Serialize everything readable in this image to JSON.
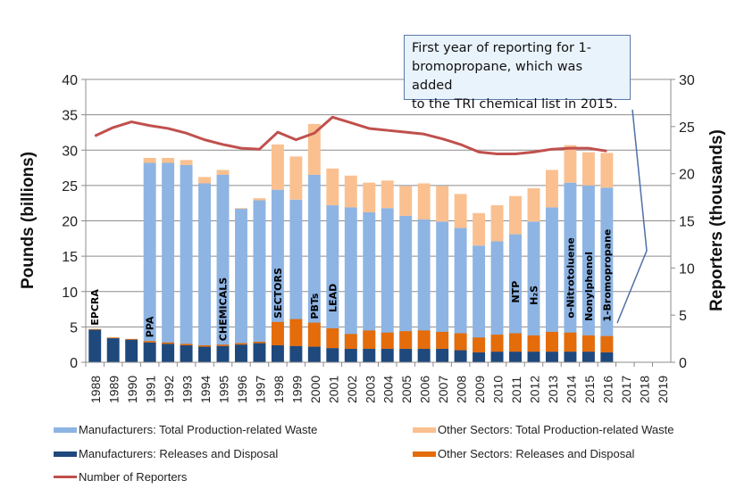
{
  "chart_data": {
    "type": "bar",
    "subtype": "stacked-bar-with-line",
    "title": "",
    "xlabel": "",
    "ylabel": "Pounds (billions)",
    "y2label": "Reporters (thousands)",
    "ylim": [
      0,
      40
    ],
    "y2lim": [
      0,
      30
    ],
    "yticks": [
      0,
      5,
      10,
      15,
      20,
      25,
      30,
      35,
      40
    ],
    "y2ticks": [
      0,
      5,
      10,
      15,
      20,
      25,
      30
    ],
    "grid": true,
    "legend_position": "bottom",
    "categories": [
      "1988",
      "1989",
      "1990",
      "1991",
      "1992",
      "1993",
      "1994",
      "1995",
      "1996",
      "1997",
      "1998",
      "1999",
      "2000",
      "2001",
      "2002",
      "2003",
      "2004",
      "2005",
      "2006",
      "2007",
      "2008",
      "2009",
      "2010",
      "2011",
      "2012",
      "2013",
      "2014",
      "2015",
      "2016",
      "2017",
      "2018",
      "2019"
    ],
    "series": [
      {
        "name": "Manufacturers: Total Production-related Waste",
        "color": "#8eb4e3",
        "kind": "bar",
        "values": [
          0.1,
          0.1,
          0.1,
          28.2,
          28.2,
          27.9,
          25.3,
          26.5,
          21.7,
          22.9,
          24.4,
          23.0,
          26.5,
          22.2,
          21.9,
          21.2,
          21.8,
          20.7,
          20.2,
          19.9,
          19.0,
          16.5,
          17.1,
          18.1,
          19.9,
          21.9,
          25.4,
          25.0,
          24.7,
          null,
          null,
          null
        ]
      },
      {
        "name": "Other Sectors: Total Production-related Waste",
        "color": "#fac090",
        "kind": "bar",
        "values": [
          0.0,
          0.0,
          0.0,
          0.7,
          0.7,
          0.7,
          0.9,
          0.7,
          0.1,
          0.3,
          6.4,
          6.1,
          7.2,
          5.2,
          4.5,
          4.2,
          3.9,
          4.2,
          5.1,
          5.0,
          4.8,
          4.6,
          5.1,
          5.4,
          4.7,
          5.3,
          5.3,
          4.7,
          4.9,
          null,
          null,
          null
        ]
      },
      {
        "name": "Manufacturers: Releases and Disposal",
        "color": "#1f497d",
        "kind": "bar",
        "values": [
          4.6,
          3.4,
          3.2,
          2.8,
          2.6,
          2.4,
          2.2,
          2.3,
          2.5,
          2.7,
          2.4,
          2.3,
          2.2,
          2.0,
          1.9,
          1.9,
          1.9,
          1.9,
          1.9,
          1.9,
          1.7,
          1.4,
          1.5,
          1.5,
          1.5,
          1.5,
          1.5,
          1.5,
          1.4,
          null,
          null,
          null
        ]
      },
      {
        "name": "Other Sectors: Releases and Disposal",
        "color": "#e46c0a",
        "kind": "bar",
        "values": [
          0.1,
          0.1,
          0.1,
          0.2,
          0.2,
          0.2,
          0.2,
          0.2,
          0.2,
          0.2,
          3.3,
          3.8,
          3.4,
          2.8,
          2.1,
          2.6,
          2.3,
          2.5,
          2.6,
          2.4,
          2.4,
          2.1,
          2.4,
          2.6,
          2.3,
          2.8,
          2.7,
          2.3,
          2.3,
          null,
          null,
          null
        ]
      },
      {
        "name": "Number of Reporters",
        "color": "#c0504d",
        "kind": "line",
        "axis": "right",
        "values": [
          24.0,
          24.9,
          25.5,
          25.1,
          24.8,
          24.3,
          23.6,
          23.1,
          22.7,
          22.6,
          24.4,
          23.6,
          24.3,
          26.0,
          25.4,
          24.8,
          24.6,
          24.4,
          24.2,
          23.7,
          23.1,
          22.3,
          22.1,
          22.1,
          22.3,
          22.6,
          22.7,
          22.7,
          22.4,
          null,
          null,
          null
        ]
      }
    ],
    "annotations": [
      {
        "year": "1988",
        "text": "EPCRA"
      },
      {
        "year": "1991",
        "text": "PPA"
      },
      {
        "year": "1995",
        "text": "CHEMICALS"
      },
      {
        "year": "1998",
        "text": "SECTORS"
      },
      {
        "year": "2000",
        "text": "PBTs"
      },
      {
        "year": "2001",
        "text": "LEAD"
      },
      {
        "year": "2011",
        "text": "NTP"
      },
      {
        "year": "2012",
        "text": "H₂S"
      },
      {
        "year": "2014",
        "text": "o-Nitrotoluene"
      },
      {
        "year": "2015",
        "text": "Nonylphenol"
      },
      {
        "year": "2016",
        "text": "1-Bromopropane"
      }
    ],
    "callout": {
      "text": "First year of reporting for 1-bromopropane, which was added to the TRI chemical list in 2015.",
      "points_to_year": "2016"
    }
  },
  "legend": {
    "items": [
      {
        "label": "Manufacturers: Total Production-related Waste",
        "color": "#8eb4e3"
      },
      {
        "label": "Other Sectors: Total Production-related Waste",
        "color": "#fac090"
      },
      {
        "label": "Manufacturers: Releases and Disposal",
        "color": "#1f497d"
      },
      {
        "label": "Other Sectors: Releases and Disposal",
        "color": "#e46c0a"
      },
      {
        "label": "Number of Reporters",
        "color": "#c0504d"
      }
    ]
  },
  "callout_lines": [
    "First year of reporting for 1-",
    "bromopropane, which was added",
    "to the TRI chemical list in 2015."
  ]
}
